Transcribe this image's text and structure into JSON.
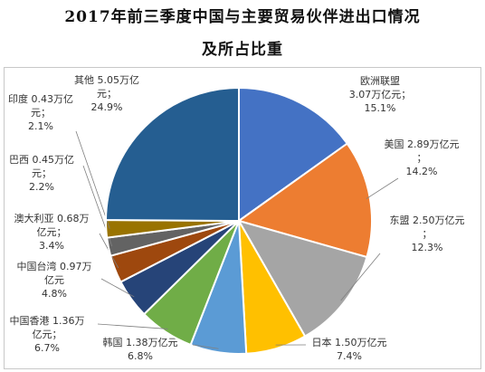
{
  "title_line1": "2017年前三季度中国与主要贸易伙伴进出口情况",
  "title_line2": "及所占比重",
  "chart_data": {
    "type": "pie",
    "start_angle": 0,
    "direction": "clockwise",
    "legend": false,
    "slices": [
      {
        "name": "欧洲联盟",
        "value": 3.07,
        "percent": 15.1,
        "color": "#4472C4",
        "label": [
          "欧洲联盟",
          "3.07万亿元；",
          "15.1%"
        ]
      },
      {
        "name": "美国",
        "value": 2.89,
        "percent": 14.2,
        "color": "#ED7D31",
        "label": [
          "美国 2.89万亿元",
          "；",
          "14.2%"
        ]
      },
      {
        "name": "东盟",
        "value": 2.5,
        "percent": 12.3,
        "color": "#A5A5A5",
        "label": [
          "东盟 2.50万亿元",
          "；",
          "12.3%"
        ]
      },
      {
        "name": "日本",
        "value": 1.5,
        "percent": 7.4,
        "color": "#FFC000",
        "label": [
          "日本 1.50万亿元",
          "7.4%"
        ]
      },
      {
        "name": "韩国",
        "value": 1.38,
        "percent": 6.8,
        "color": "#5B9BD5",
        "label": [
          "韩国 1.38万亿元",
          "6.8%"
        ]
      },
      {
        "name": "中国香港",
        "value": 1.36,
        "percent": 6.7,
        "color": "#70AD47",
        "label": [
          "中国香港 1.36万",
          "亿元；",
          "6.7%"
        ]
      },
      {
        "name": "中国台湾",
        "value": 0.97,
        "percent": 4.8,
        "color": "#264478",
        "label": [
          "中国台湾 0.97万",
          "亿元",
          "4.8%"
        ]
      },
      {
        "name": "澳大利亚",
        "value": 0.68,
        "percent": 3.4,
        "color": "#9E480E",
        "label": [
          "澳大利亚 0.68万",
          "亿元；",
          "3.4%"
        ]
      },
      {
        "name": "巴西",
        "value": 0.45,
        "percent": 2.2,
        "color": "#636363",
        "label": [
          "巴西 0.45万亿",
          "元；",
          "2.2%"
        ]
      },
      {
        "name": "印度",
        "value": 0.43,
        "percent": 2.1,
        "color": "#997300",
        "label": [
          "印度 0.43万亿",
          "元；",
          "2.1%"
        ]
      },
      {
        "name": "其他",
        "value": 5.05,
        "percent": 24.9,
        "color": "#255E91",
        "label": [
          "其他 5.05万亿",
          "元；",
          "24.9%"
        ]
      }
    ]
  }
}
